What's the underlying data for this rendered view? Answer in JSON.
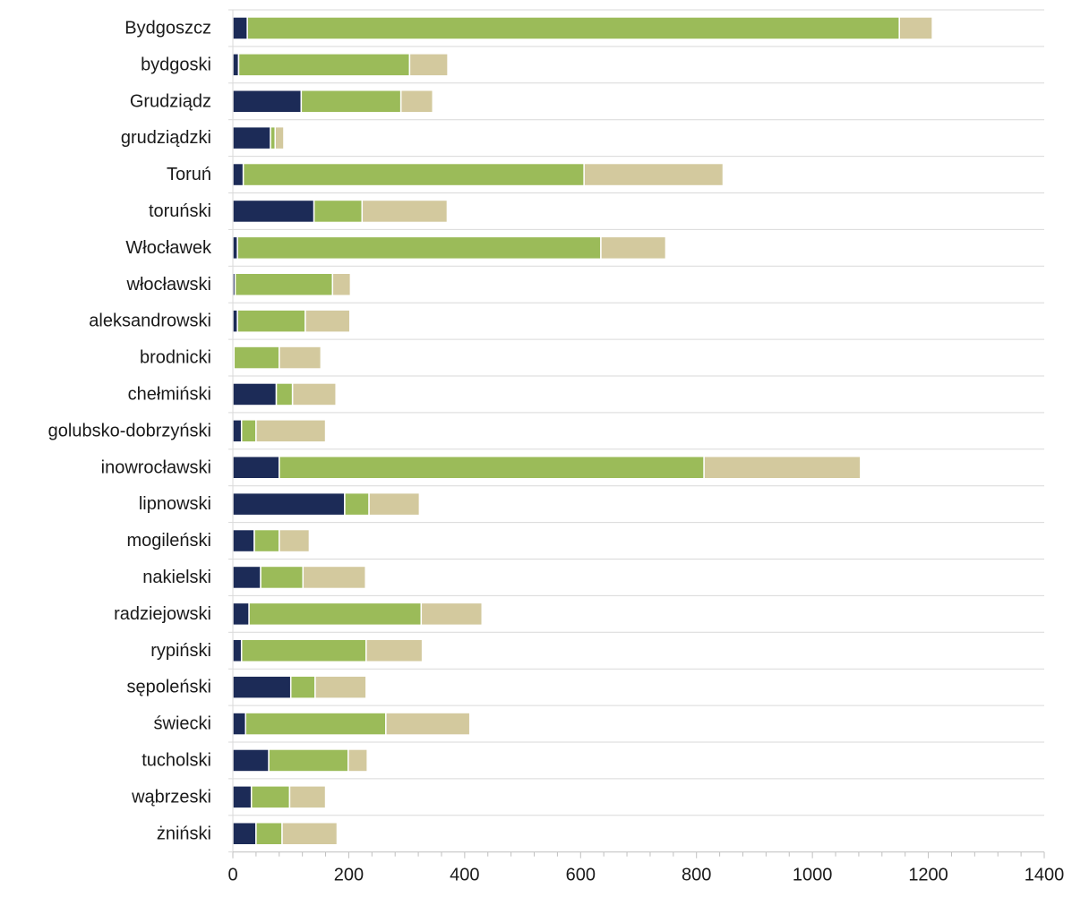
{
  "chart_data": {
    "type": "bar",
    "orientation": "horizontal",
    "stacked": true,
    "title": "",
    "xlabel": "",
    "ylabel": "",
    "xlim": [
      0,
      1400
    ],
    "xticks": [
      "0",
      "200",
      "400",
      "600",
      "800",
      "1000",
      "1200",
      "1400"
    ],
    "grid": {
      "vertical": false,
      "horizontal": true
    },
    "legend": "none",
    "categories": [
      "Bydgoszcz",
      "bydgoski",
      "Grudziądz",
      "grudziądzki",
      "Toruń",
      "toruński",
      "Włocławek",
      "włocławski",
      "aleksandrowski",
      "brodnicki",
      "chełmiński",
      "golubsko-dobrzyński",
      "inowrocławski",
      "lipnowski",
      "mogileński",
      "nakielski",
      "radziejowski",
      "rypiński",
      "sępoleński",
      "świecki",
      "tucholski",
      "wąbrzeski",
      "żniński"
    ],
    "series": [
      {
        "color": "#1c2b57",
        "values": [
          25,
          10,
          118,
          65,
          18,
          140,
          8,
          4,
          8,
          2,
          75,
          15,
          80,
          193,
          37,
          48,
          28,
          15,
          100,
          22,
          62,
          32,
          40
        ]
      },
      {
        "color": "#9bbb59",
        "values": [
          1125,
          295,
          172,
          8,
          588,
          83,
          627,
          168,
          117,
          78,
          28,
          25,
          733,
          42,
          43,
          73,
          297,
          215,
          42,
          242,
          137,
          66,
          45
        ]
      },
      {
        "color": "#d3c99e",
        "values": [
          57,
          66,
          55,
          15,
          240,
          147,
          112,
          31,
          77,
          72,
          75,
          120,
          270,
          87,
          52,
          108,
          105,
          97,
          88,
          145,
          33,
          62,
          95
        ]
      }
    ]
  }
}
